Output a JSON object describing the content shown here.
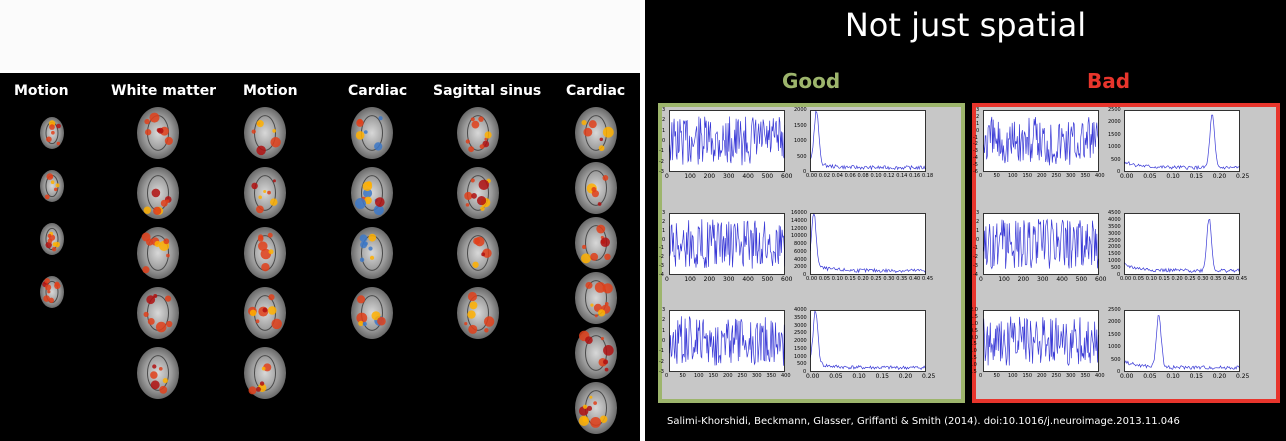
{
  "left": {
    "columns": [
      {
        "label": "Motion",
        "rows": 4,
        "variant": "small",
        "overlay": "hot"
      },
      {
        "label": "White matter",
        "rows": 5,
        "variant": "full",
        "overlay": "hot"
      },
      {
        "label": "Motion",
        "rows": 5,
        "variant": "full",
        "overlay": "hot"
      },
      {
        "label": "Cardiac",
        "rows": 4,
        "variant": "full",
        "overlay": "mixed"
      },
      {
        "label": "Sagittal sinus",
        "rows": 4,
        "variant": "full",
        "overlay": "hot"
      },
      {
        "label": "Cardiac",
        "rows": 6,
        "variant": "full",
        "overlay": "hot"
      }
    ]
  },
  "right": {
    "title": "Not just spatial",
    "good_label": "Good",
    "bad_label": "Bad",
    "good_color": "#9db56c",
    "bad_color": "#e8352c",
    "citation": "Salimi-Khorshidi, Beckmann, Glasser, Griffanti & Smith (2014). doi:10.1016/j.neuroimage.2013.11.046"
  },
  "chart_data": [
    {
      "type": "line",
      "group": "Good",
      "row": 1,
      "kind": "timeseries",
      "x_ticks": [
        "0",
        "100",
        "200",
        "300",
        "400",
        "500",
        "600"
      ],
      "y_ticks": [
        "3",
        "2",
        "1",
        "0",
        "-1",
        "-2",
        "-3"
      ],
      "xlim": [
        0,
        600
      ],
      "ylim": [
        -3,
        3
      ]
    },
    {
      "type": "line",
      "group": "Good",
      "row": 1,
      "kind": "spectrum",
      "x_ticks": [
        "0.00",
        "0.02",
        "0.04",
        "0.06",
        "0.08",
        "0.10",
        "0.12",
        "0.14",
        "0.16",
        "0.18"
      ],
      "y_ticks": [
        "2000",
        "1500",
        "1000",
        "500",
        "0"
      ],
      "xlim": [
        0,
        0.18
      ],
      "ylim": [
        0,
        2000
      ],
      "peak_x": 0.01
    },
    {
      "type": "line",
      "group": "Good",
      "row": 2,
      "kind": "timeseries",
      "x_ticks": [
        "0",
        "100",
        "200",
        "300",
        "400",
        "500",
        "600"
      ],
      "y_ticks": [
        "3",
        "2",
        "1",
        "0",
        "-1",
        "-2",
        "-3",
        "-4"
      ],
      "xlim": [
        0,
        600
      ],
      "ylim": [
        -4,
        3
      ]
    },
    {
      "type": "line",
      "group": "Good",
      "row": 2,
      "kind": "spectrum",
      "x_ticks": [
        "0.00",
        "0.05",
        "0.10",
        "0.15",
        "0.20",
        "0.25",
        "0.30",
        "0.35",
        "0.40",
        "0.45"
      ],
      "y_ticks": [
        "16000",
        "14000",
        "12000",
        "10000",
        "8000",
        "6000",
        "4000",
        "2000",
        "0"
      ],
      "xlim": [
        0,
        0.45
      ],
      "ylim": [
        0,
        16000
      ],
      "peak_x": 0.015
    },
    {
      "type": "line",
      "group": "Good",
      "row": 3,
      "kind": "timeseries",
      "x_ticks": [
        "0",
        "50",
        "100",
        "150",
        "200",
        "250",
        "300",
        "350",
        "400"
      ],
      "y_ticks": [
        "3",
        "2",
        "1",
        "0",
        "-1",
        "-2",
        "-3"
      ],
      "xlim": [
        0,
        400
      ],
      "ylim": [
        -3,
        3
      ]
    },
    {
      "type": "line",
      "group": "Good",
      "row": 3,
      "kind": "spectrum",
      "x_ticks": [
        "0.00",
        "0.05",
        "0.10",
        "0.15",
        "0.20",
        "0.25"
      ],
      "y_ticks": [
        "4000",
        "3500",
        "3000",
        "2500",
        "2000",
        "1500",
        "1000",
        "500",
        "0"
      ],
      "xlim": [
        0,
        0.25
      ],
      "ylim": [
        0,
        4000
      ],
      "peak_x": 0.012
    },
    {
      "type": "line",
      "group": "Bad",
      "row": 1,
      "kind": "timeseries",
      "x_ticks": [
        "0",
        "50",
        "100",
        "150",
        "200",
        "250",
        "300",
        "350",
        "400"
      ],
      "y_ticks": [
        "3",
        "2",
        "1",
        "0",
        "-1",
        "-2",
        "-3",
        "-4",
        "-5",
        "-6"
      ],
      "xlim": [
        0,
        400
      ],
      "ylim": [
        -6,
        3
      ]
    },
    {
      "type": "line",
      "group": "Bad",
      "row": 1,
      "kind": "spectrum",
      "x_ticks": [
        "0.00",
        "0.05",
        "0.10",
        "0.15",
        "0.20",
        "0.25"
      ],
      "y_ticks": [
        "2500",
        "2000",
        "1500",
        "1000",
        "500",
        "0"
      ],
      "xlim": [
        0,
        0.25
      ],
      "ylim": [
        0,
        2500
      ],
      "peak_x": 0.19
    },
    {
      "type": "line",
      "group": "Bad",
      "row": 2,
      "kind": "timeseries",
      "x_ticks": [
        "0",
        "100",
        "200",
        "300",
        "400",
        "500",
        "600"
      ],
      "y_ticks": [
        "3",
        "2",
        "1",
        "0",
        "-1",
        "-2",
        "-3",
        "-4"
      ],
      "xlim": [
        0,
        600
      ],
      "ylim": [
        -4,
        3
      ]
    },
    {
      "type": "line",
      "group": "Bad",
      "row": 2,
      "kind": "spectrum",
      "x_ticks": [
        "0.00",
        "0.05",
        "0.10",
        "0.15",
        "0.20",
        "0.25",
        "0.30",
        "0.35",
        "0.40",
        "0.45"
      ],
      "y_ticks": [
        "4500",
        "4000",
        "3500",
        "3000",
        "2500",
        "2000",
        "1500",
        "1000",
        "500",
        "0"
      ],
      "xlim": [
        0,
        0.45
      ],
      "ylim": [
        0,
        4500
      ],
      "peak_x": 0.33
    },
    {
      "type": "line",
      "group": "Bad",
      "row": 3,
      "kind": "timeseries",
      "x_ticks": [
        "0",
        "50",
        "100",
        "150",
        "200",
        "250",
        "300",
        "350",
        "400"
      ],
      "y_ticks": [
        "2.0",
        "1.5",
        "1.0",
        "0.5",
        "0.0",
        "-0.5",
        "-1.0",
        "-1.5",
        "-2.0",
        "-2.5"
      ],
      "xlim": [
        0,
        400
      ],
      "ylim": [
        -2.5,
        2.0
      ]
    },
    {
      "type": "line",
      "group": "Bad",
      "row": 3,
      "kind": "spectrum",
      "x_ticks": [
        "0.00",
        "0.05",
        "0.10",
        "0.15",
        "0.20",
        "0.25"
      ],
      "y_ticks": [
        "2500",
        "2000",
        "1500",
        "1000",
        "500",
        "0"
      ],
      "xlim": [
        0,
        0.25
      ],
      "ylim": [
        0,
        2500
      ],
      "peak_x": 0.075
    }
  ]
}
